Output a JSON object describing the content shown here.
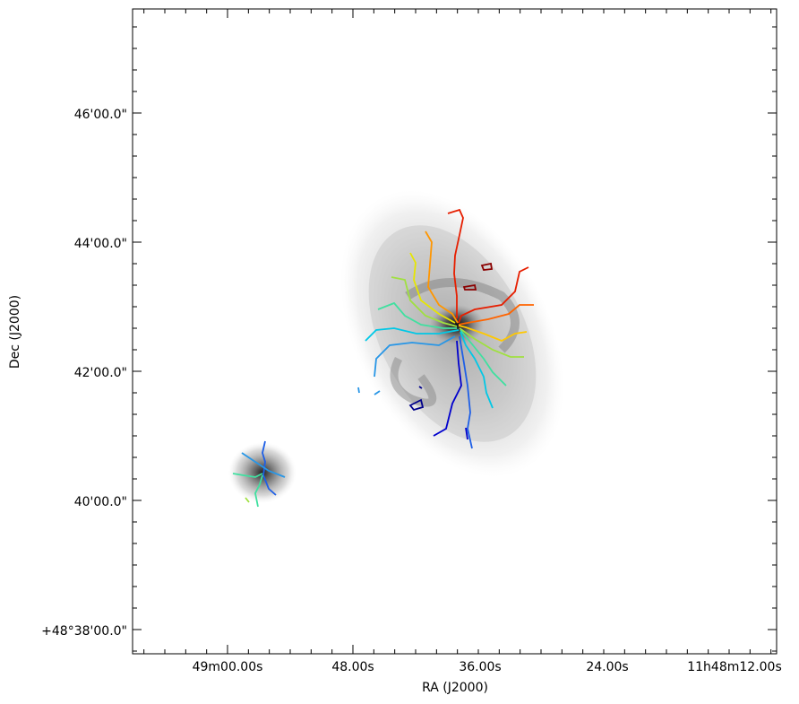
{
  "figure": {
    "x_axis_label": "RA (J2000)",
    "y_axis_label": "Dec (J2000)",
    "x_tick_labels": [
      "49m00.00s",
      "48.00s",
      "36.00s",
      "24.00s",
      "11h48m12.00s"
    ],
    "y_tick_labels": [
      "46'00.0\"",
      "44'00.0\"",
      "42'00.0\"",
      "40'00.0\"",
      "+48°38'00.0\""
    ]
  },
  "colors": {
    "frame": "#000000",
    "contours": [
      "#00008b",
      "#0000cd",
      "#1e5fe6",
      "#2896e6",
      "#00c8e6",
      "#40e0a0",
      "#a0e040",
      "#e6e600",
      "#ffc800",
      "#ff9600",
      "#ff6400",
      "#e61e00",
      "#8b0000"
    ]
  }
}
